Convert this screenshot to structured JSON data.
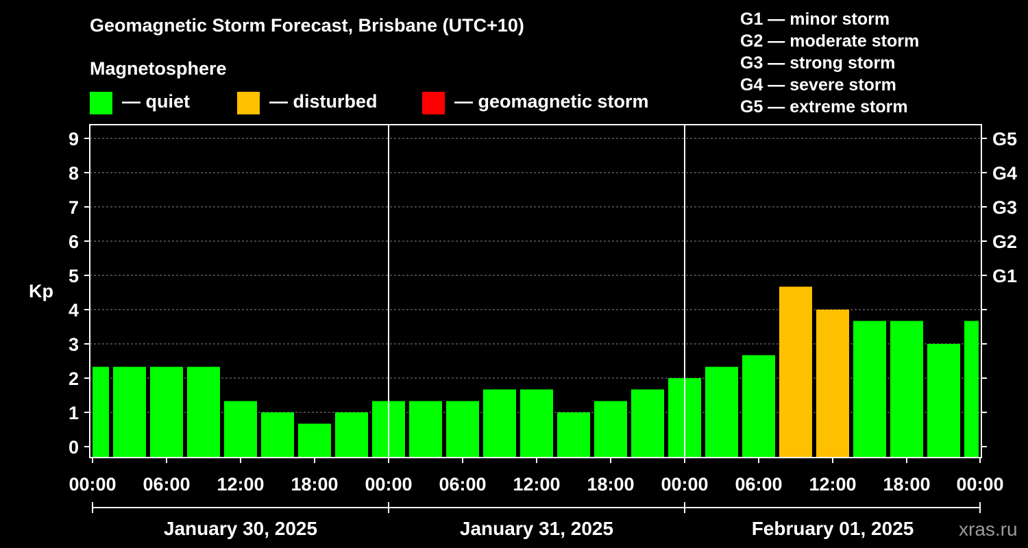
{
  "chart_data": {
    "type": "bar",
    "title": "Geomagnetic Storm Forecast, Brisbane (UTC+10)",
    "ylabel": "Kp",
    "ylim": [
      0,
      9
    ],
    "yticks": [
      "0",
      "1",
      "2",
      "3",
      "4",
      "5",
      "6",
      "7",
      "8",
      "9"
    ],
    "right_ticks": [
      {
        "kp": 5,
        "label": "G1"
      },
      {
        "kp": 6,
        "label": "G2"
      },
      {
        "kp": 7,
        "label": "G3"
      },
      {
        "kp": 8,
        "label": "G4"
      },
      {
        "kp": 9,
        "label": "G5"
      }
    ],
    "time_ticks": [
      "00:00",
      "06:00",
      "12:00",
      "18:00",
      "00:00",
      "06:00",
      "12:00",
      "18:00",
      "00:00",
      "06:00",
      "12:00",
      "18:00",
      "00:00"
    ],
    "days": [
      "January 30, 2025",
      "January 31, 2025",
      "February 01, 2025"
    ],
    "grid": true,
    "values": [
      2.33,
      2.33,
      2.33,
      2.33,
      1.33,
      1.0,
      0.67,
      1.0,
      1.33,
      1.33,
      1.33,
      1.67,
      1.67,
      1.0,
      1.33,
      1.67,
      2.0,
      2.33,
      2.67,
      4.67,
      4.0,
      3.67,
      3.67,
      3.0,
      3.67
    ],
    "bar_status": [
      "quiet",
      "quiet",
      "quiet",
      "quiet",
      "quiet",
      "quiet",
      "quiet",
      "quiet",
      "quiet",
      "quiet",
      "quiet",
      "quiet",
      "quiet",
      "quiet",
      "quiet",
      "quiet",
      "quiet",
      "quiet",
      "quiet",
      "disturbed",
      "disturbed",
      "quiet",
      "quiet",
      "quiet",
      "quiet"
    ]
  },
  "legend": {
    "heading": "Magnetosphere",
    "items": [
      {
        "key": "quiet",
        "label": "— quiet",
        "color": "#00ff00"
      },
      {
        "key": "disturbed",
        "label": "— disturbed",
        "color": "#ffc000"
      },
      {
        "key": "storm",
        "label": "— geomagnetic storm",
        "color": "#ff0000"
      }
    ]
  },
  "storm_levels": [
    "G1 — minor storm",
    "G2 — moderate storm",
    "G3 — strong storm",
    "G4 — severe storm",
    "G5 — extreme storm"
  ],
  "watermark": "xras.ru"
}
